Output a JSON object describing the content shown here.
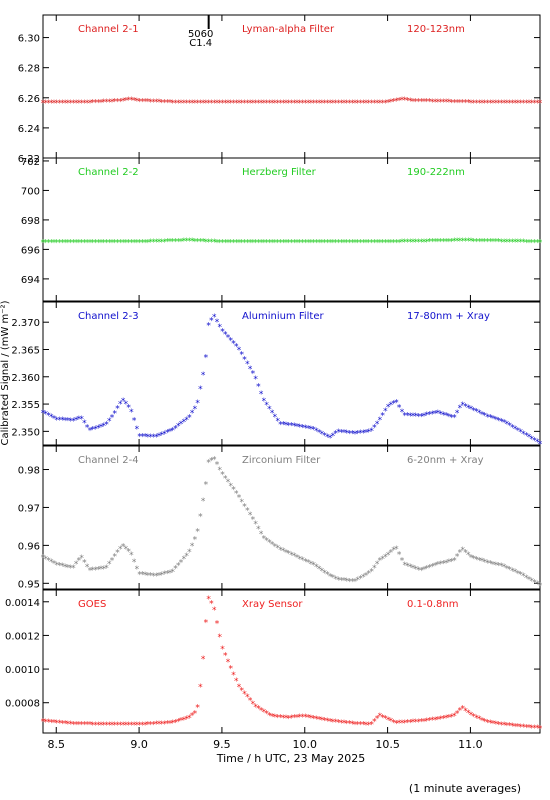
{
  "x_axis": {
    "label": "Time / h UTC, 23 May 2025",
    "range": [
      8.42,
      11.42
    ],
    "ticks": [
      8.5,
      9.0,
      9.5,
      10.0,
      10.5,
      11.0
    ],
    "tick_labels": [
      "8.5",
      "9.0",
      "9.5",
      "10.0",
      "10.5",
      "11.0"
    ]
  },
  "y_axis_label": "Calibrated Signal / (mW m⁻²)",
  "footnote": "(1 minute averages)",
  "event_marker": {
    "x": 9.42,
    "line1": "5060",
    "line2": "C1.4"
  },
  "chart_data": [
    {
      "type": "scatter",
      "channel": "Channel 2-1",
      "filter": "Lyman-alpha Filter",
      "band": "120-123nm",
      "color": "#dd2020",
      "ylim": [
        6.22,
        6.315
      ],
      "yticks": [
        6.22,
        6.24,
        6.26,
        6.28,
        6.3
      ],
      "ytick_labels": [
        "6.22",
        "6.24",
        "6.26",
        "6.28",
        "6.30"
      ],
      "x": [
        8.42,
        8.7,
        8.9,
        8.95,
        9.0,
        9.2,
        9.5,
        10.0,
        10.5,
        10.6,
        10.65,
        11.0,
        11.42
      ],
      "y": [
        6.257,
        6.257,
        6.258,
        6.259,
        6.258,
        6.257,
        6.257,
        6.257,
        6.257,
        6.259,
        6.258,
        6.257,
        6.257
      ]
    },
    {
      "type": "scatter",
      "channel": "Channel 2-2",
      "filter": "Herzberg Filter",
      "band": "190-222nm",
      "color": "#22cc22",
      "ylim": [
        692.5,
        702.2
      ],
      "yticks": [
        694,
        696,
        698,
        700,
        702
      ],
      "ytick_labels": [
        "694",
        "696",
        "698",
        "700",
        "702"
      ],
      "x": [
        8.42,
        9.0,
        9.3,
        9.5,
        10.0,
        10.5,
        10.95,
        11.42
      ],
      "y": [
        696.5,
        696.5,
        696.6,
        696.5,
        696.5,
        696.5,
        696.6,
        696.5
      ]
    },
    {
      "type": "scatter",
      "channel": "Channel 2-3",
      "filter": "Aluminium Filter",
      "band": "17-80nm + Xray",
      "color": "#1010cc",
      "ylim": [
        2.3475,
        2.3737
      ],
      "yticks": [
        2.35,
        2.355,
        2.36,
        2.365,
        2.37
      ],
      "ytick_labels": [
        "2.350",
        "2.355",
        "2.360",
        "2.365",
        "2.370"
      ],
      "x": [
        8.42,
        8.5,
        8.6,
        8.65,
        8.7,
        8.8,
        8.85,
        8.9,
        8.95,
        9.0,
        9.1,
        9.2,
        9.3,
        9.35,
        9.4,
        9.42,
        9.45,
        9.5,
        9.6,
        9.7,
        9.75,
        9.85,
        9.95,
        10.05,
        10.15,
        10.2,
        10.3,
        10.4,
        10.45,
        10.5,
        10.55,
        10.6,
        10.7,
        10.8,
        10.9,
        10.95,
        11.0,
        11.1,
        11.2,
        11.3,
        11.42
      ],
      "y": [
        2.3535,
        2.3522,
        2.352,
        2.3525,
        2.3502,
        2.3512,
        2.3532,
        2.3558,
        2.354,
        2.3492,
        2.349,
        2.3502,
        2.3525,
        2.3548,
        2.3625,
        2.3695,
        2.3712,
        2.3685,
        2.3652,
        2.36,
        2.3558,
        2.3514,
        2.351,
        2.3505,
        2.3488,
        2.35,
        2.3496,
        2.35,
        2.352,
        2.3545,
        2.3555,
        2.353,
        2.3528,
        2.3535,
        2.3525,
        2.355,
        2.3542,
        2.3528,
        2.3518,
        2.35,
        2.3478
      ]
    },
    {
      "type": "scatter",
      "channel": "Channel 2-4",
      "filter": "Zirconium Filter",
      "band": "6-20nm + Xray",
      "color": "#808080",
      "ylim": [
        0.9485,
        0.9862
      ],
      "yticks": [
        0.95,
        0.96,
        0.97,
        0.98
      ],
      "ytick_labels": [
        "0.95",
        "0.96",
        "0.97",
        "0.98"
      ],
      "x": [
        8.42,
        8.5,
        8.6,
        8.65,
        8.7,
        8.8,
        8.85,
        8.9,
        8.95,
        9.0,
        9.1,
        9.2,
        9.3,
        9.35,
        9.4,
        9.42,
        9.45,
        9.5,
        9.6,
        9.7,
        9.75,
        9.85,
        9.95,
        10.05,
        10.15,
        10.2,
        10.3,
        10.4,
        10.45,
        10.5,
        10.55,
        10.6,
        10.7,
        10.8,
        10.9,
        10.95,
        11.0,
        11.1,
        11.2,
        11.3,
        11.42
      ],
      "y": [
        0.957,
        0.955,
        0.954,
        0.957,
        0.9535,
        0.954,
        0.957,
        0.96,
        0.958,
        0.9525,
        0.952,
        0.953,
        0.958,
        0.963,
        0.975,
        0.982,
        0.983,
        0.979,
        0.973,
        0.966,
        0.962,
        0.959,
        0.957,
        0.955,
        0.952,
        0.951,
        0.9505,
        0.953,
        0.956,
        0.9575,
        0.9595,
        0.955,
        0.9535,
        0.955,
        0.956,
        0.959,
        0.957,
        0.9555,
        0.9545,
        0.9525,
        0.9495
      ]
    },
    {
      "type": "scatter",
      "channel": "GOES",
      "filter": "Xray Sensor",
      "band": "0.1-0.8nm",
      "color": "#ee2020",
      "ylim": [
        0.00062,
        0.00147
      ],
      "yticks": [
        0.0008,
        0.001,
        0.0012,
        0.0014
      ],
      "ytick_labels": [
        "0.0008",
        "0.0010",
        "0.0012",
        "0.0014"
      ],
      "x": [
        8.42,
        8.6,
        8.8,
        9.0,
        9.2,
        9.3,
        9.35,
        9.38,
        9.4,
        9.42,
        9.45,
        9.5,
        9.6,
        9.7,
        9.8,
        9.9,
        10.0,
        10.1,
        10.2,
        10.3,
        10.4,
        10.45,
        10.55,
        10.7,
        10.85,
        10.9,
        10.95,
        11.0,
        11.1,
        11.2,
        11.3,
        11.42
      ],
      "y": [
        0.00069,
        0.000675,
        0.00067,
        0.00067,
        0.00068,
        0.00071,
        0.00075,
        0.00097,
        0.00125,
        0.00142,
        0.00137,
        0.00113,
        0.0009,
        0.00078,
        0.00072,
        0.00071,
        0.00072,
        0.0007,
        0.000685,
        0.000675,
        0.00067,
        0.000725,
        0.00068,
        0.00069,
        0.00071,
        0.00072,
        0.00077,
        0.00073,
        0.000685,
        0.00067,
        0.00066,
        0.00065
      ]
    }
  ]
}
